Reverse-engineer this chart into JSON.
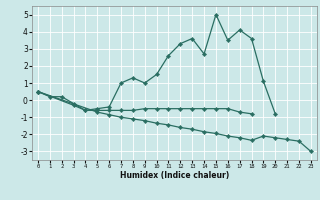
{
  "title": "",
  "xlabel": "Humidex (Indice chaleur)",
  "ylabel": "",
  "line_color": "#2a6e62",
  "bg_color": "#cce8e8",
  "grid_color": "#ffffff",
  "xlim": [
    -0.5,
    23.5
  ],
  "ylim": [
    -3.5,
    5.5
  ],
  "line1_x": [
    0,
    1,
    2,
    3,
    4,
    5,
    6,
    7,
    8,
    9,
    10,
    11,
    12,
    13,
    14,
    15,
    16,
    17,
    18,
    19,
    20
  ],
  "line1_y": [
    0.5,
    0.2,
    0.2,
    -0.2,
    -0.6,
    -0.5,
    -0.4,
    1.0,
    1.3,
    1.0,
    1.5,
    2.6,
    3.3,
    3.6,
    2.7,
    5.0,
    3.5,
    4.1,
    3.6,
    1.1,
    -0.8
  ],
  "line2_x": [
    0,
    3,
    4,
    5,
    6,
    7,
    8,
    9,
    10,
    11,
    12,
    13,
    14,
    15,
    16,
    17,
    18
  ],
  "line2_y": [
    0.5,
    -0.3,
    -0.6,
    -0.6,
    -0.6,
    -0.6,
    -0.6,
    -0.5,
    -0.5,
    -0.5,
    -0.5,
    -0.5,
    -0.5,
    -0.5,
    -0.5,
    -0.7,
    -0.8
  ],
  "line3_x": [
    0,
    5,
    6,
    7,
    8,
    9,
    10,
    11,
    12,
    13,
    14,
    15,
    16,
    17,
    18,
    19,
    20,
    21,
    22,
    23
  ],
  "line3_y": [
    0.5,
    -0.7,
    -0.85,
    -1.0,
    -1.1,
    -1.2,
    -1.35,
    -1.45,
    -1.6,
    -1.7,
    -1.85,
    -1.95,
    -2.1,
    -2.2,
    -2.35,
    -2.1,
    -2.2,
    -2.3,
    -2.4,
    -3.0
  ],
  "xticks": [
    0,
    1,
    2,
    3,
    4,
    5,
    6,
    7,
    8,
    9,
    10,
    11,
    12,
    13,
    14,
    15,
    16,
    17,
    18,
    19,
    20,
    21,
    22,
    23
  ],
  "yticks": [
    -3,
    -2,
    -1,
    0,
    1,
    2,
    3,
    4,
    5
  ],
  "marker": "D",
  "markersize": 2.2,
  "linewidth": 0.9
}
